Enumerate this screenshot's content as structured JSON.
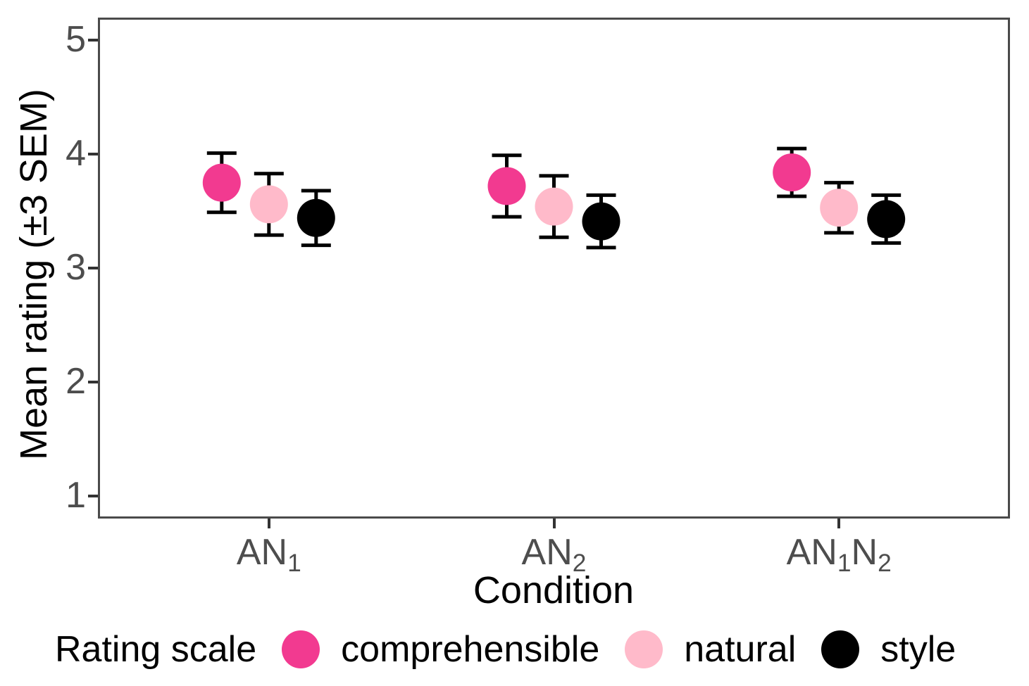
{
  "figure": {
    "background": "#FFFFFF"
  },
  "colors": {
    "axis_text": "#4D4D4D",
    "axis_title": "#000000",
    "panel_border": "#4A4A4A",
    "tick_marks": "#333333",
    "error_bars": "#000000"
  },
  "chart_data": {
    "type": "scatter",
    "title": "",
    "xlabel": "Condition",
    "ylabel": "Mean rating (±3 SEM)",
    "legend_title": "Rating scale",
    "legend_position": "bottom",
    "grid": false,
    "error_bars": "±3 SEM",
    "ylim": [
      0.8,
      5.2
    ],
    "y_ticks": [
      1,
      2,
      3,
      4,
      5
    ],
    "categories": [
      "AN₁",
      "AN₂",
      "AN₁N₂"
    ],
    "categories_parts": [
      [
        {
          "text": "AN"
        },
        {
          "text": "1",
          "sub": true
        }
      ],
      [
        {
          "text": "AN"
        },
        {
          "text": "2",
          "sub": true
        }
      ],
      [
        {
          "text": "AN"
        },
        {
          "text": "1",
          "sub": true
        },
        {
          "text": "N"
        },
        {
          "text": "2",
          "sub": true
        }
      ]
    ],
    "series": [
      {
        "name": "comprehensible",
        "color": "#F23A90",
        "values": [
          3.75,
          3.72,
          3.84
        ],
        "lower": [
          3.49,
          3.45,
          3.63
        ],
        "upper": [
          4.01,
          3.99,
          4.05
        ]
      },
      {
        "name": "natural",
        "color": "#FFBACA",
        "values": [
          3.56,
          3.54,
          3.53
        ],
        "lower": [
          3.29,
          3.27,
          3.31
        ],
        "upper": [
          3.83,
          3.81,
          3.75
        ]
      },
      {
        "name": "style",
        "color": "#000000",
        "values": [
          3.44,
          3.41,
          3.43
        ],
        "lower": [
          3.2,
          3.18,
          3.22
        ],
        "upper": [
          3.68,
          3.64,
          3.64
        ]
      }
    ]
  }
}
